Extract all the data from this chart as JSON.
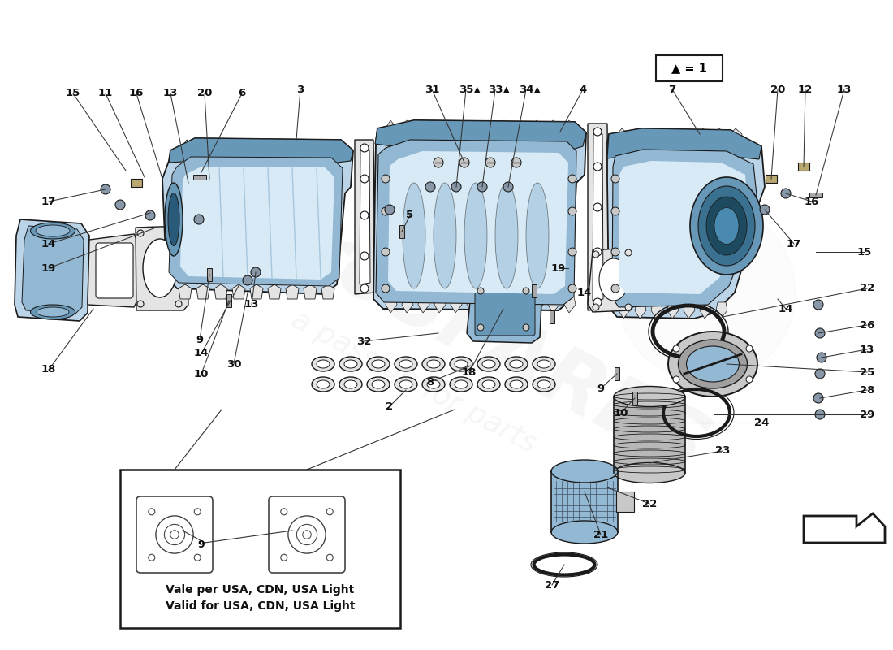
{
  "bg_color": "#ffffff",
  "part_blue_light": "#bcd4e8",
  "part_blue_mid": "#92b8d4",
  "part_blue_dark": "#6898b8",
  "part_blue_inner": "#d8eaf5",
  "part_gray": "#c8c8c8",
  "part_gray_light": "#e4e4e4",
  "part_gray_dark": "#a0a0a0",
  "line_color": "#1a1a1a",
  "label_fs": 9.5,
  "watermark1": "euroSPARES",
  "watermark2": "a passion for parts",
  "legend_text": "▲ = 1",
  "note1": "Vale per USA, CDN, USA Light",
  "note2": "Valid for USA, CDN, USA Light"
}
